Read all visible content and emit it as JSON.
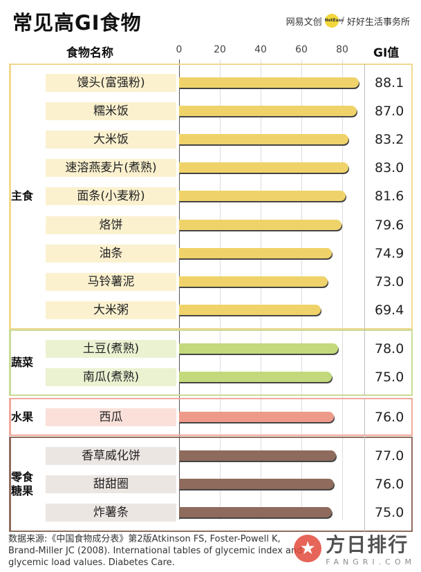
{
  "title": "常见高GI食物",
  "brand": {
    "left": "网易文创",
    "badge": "NetEase",
    "separator": "/",
    "right": "好好生活事务所"
  },
  "headers": {
    "food": "食物名称",
    "gi": "GI值"
  },
  "chart_data": {
    "type": "bar",
    "orientation": "horizontal",
    "xlim": [
      0,
      90
    ],
    "ticks": [
      0,
      20,
      40,
      60,
      80
    ],
    "groups": [
      {
        "name": "主食",
        "color": "#efd36a",
        "bg": "#fbf1cf",
        "border": "#efd98f",
        "items": [
          {
            "label": "馒头(富强粉)",
            "value": "88.1"
          },
          {
            "label": "糯米饭",
            "value": "87.0"
          },
          {
            "label": "大米饭",
            "value": "83.2"
          },
          {
            "label": "速溶燕麦片(煮熟)",
            "value": "83.0"
          },
          {
            "label": "面条(小麦粉)",
            "value": "81.6"
          },
          {
            "label": "烙饼",
            "value": "79.6"
          },
          {
            "label": "油条",
            "value": "74.9"
          },
          {
            "label": "马铃薯泥",
            "value": "73.0"
          },
          {
            "label": "大米粥",
            "value": "69.4"
          }
        ]
      },
      {
        "name": "蔬菜",
        "color": "#c3d97c",
        "bg": "#ebf2d2",
        "border": "#c9dc95",
        "items": [
          {
            "label": "土豆(煮熟)",
            "value": "78.0"
          },
          {
            "label": "南瓜(煮熟)",
            "value": "75.0"
          }
        ]
      },
      {
        "name": "水果",
        "color": "#ee9a8a",
        "bg": "#fbe0da",
        "border": "#f0a89a",
        "items": [
          {
            "label": "西瓜",
            "value": "76.0"
          }
        ]
      },
      {
        "name": "零食\n糖果",
        "color": "#8e6b5d",
        "bg": "#ece6e3",
        "border": "#8e6b5d",
        "items": [
          {
            "label": "香草威化饼",
            "value": "77.0"
          },
          {
            "label": "甜甜圈",
            "value": "76.0"
          },
          {
            "label": "炸薯条",
            "value": "75.0"
          }
        ]
      }
    ]
  },
  "source": "数据来源:《中国食物成分表》第2版Atkinson FS, Foster-Powell K, Brand-Miller JC (2008). International tables of glycemic index and glycemic load values. Diabetes Care.",
  "watermark": {
    "main": "方日排行",
    "sub": "FANGRI.COM",
    "icon": "star-icon"
  }
}
